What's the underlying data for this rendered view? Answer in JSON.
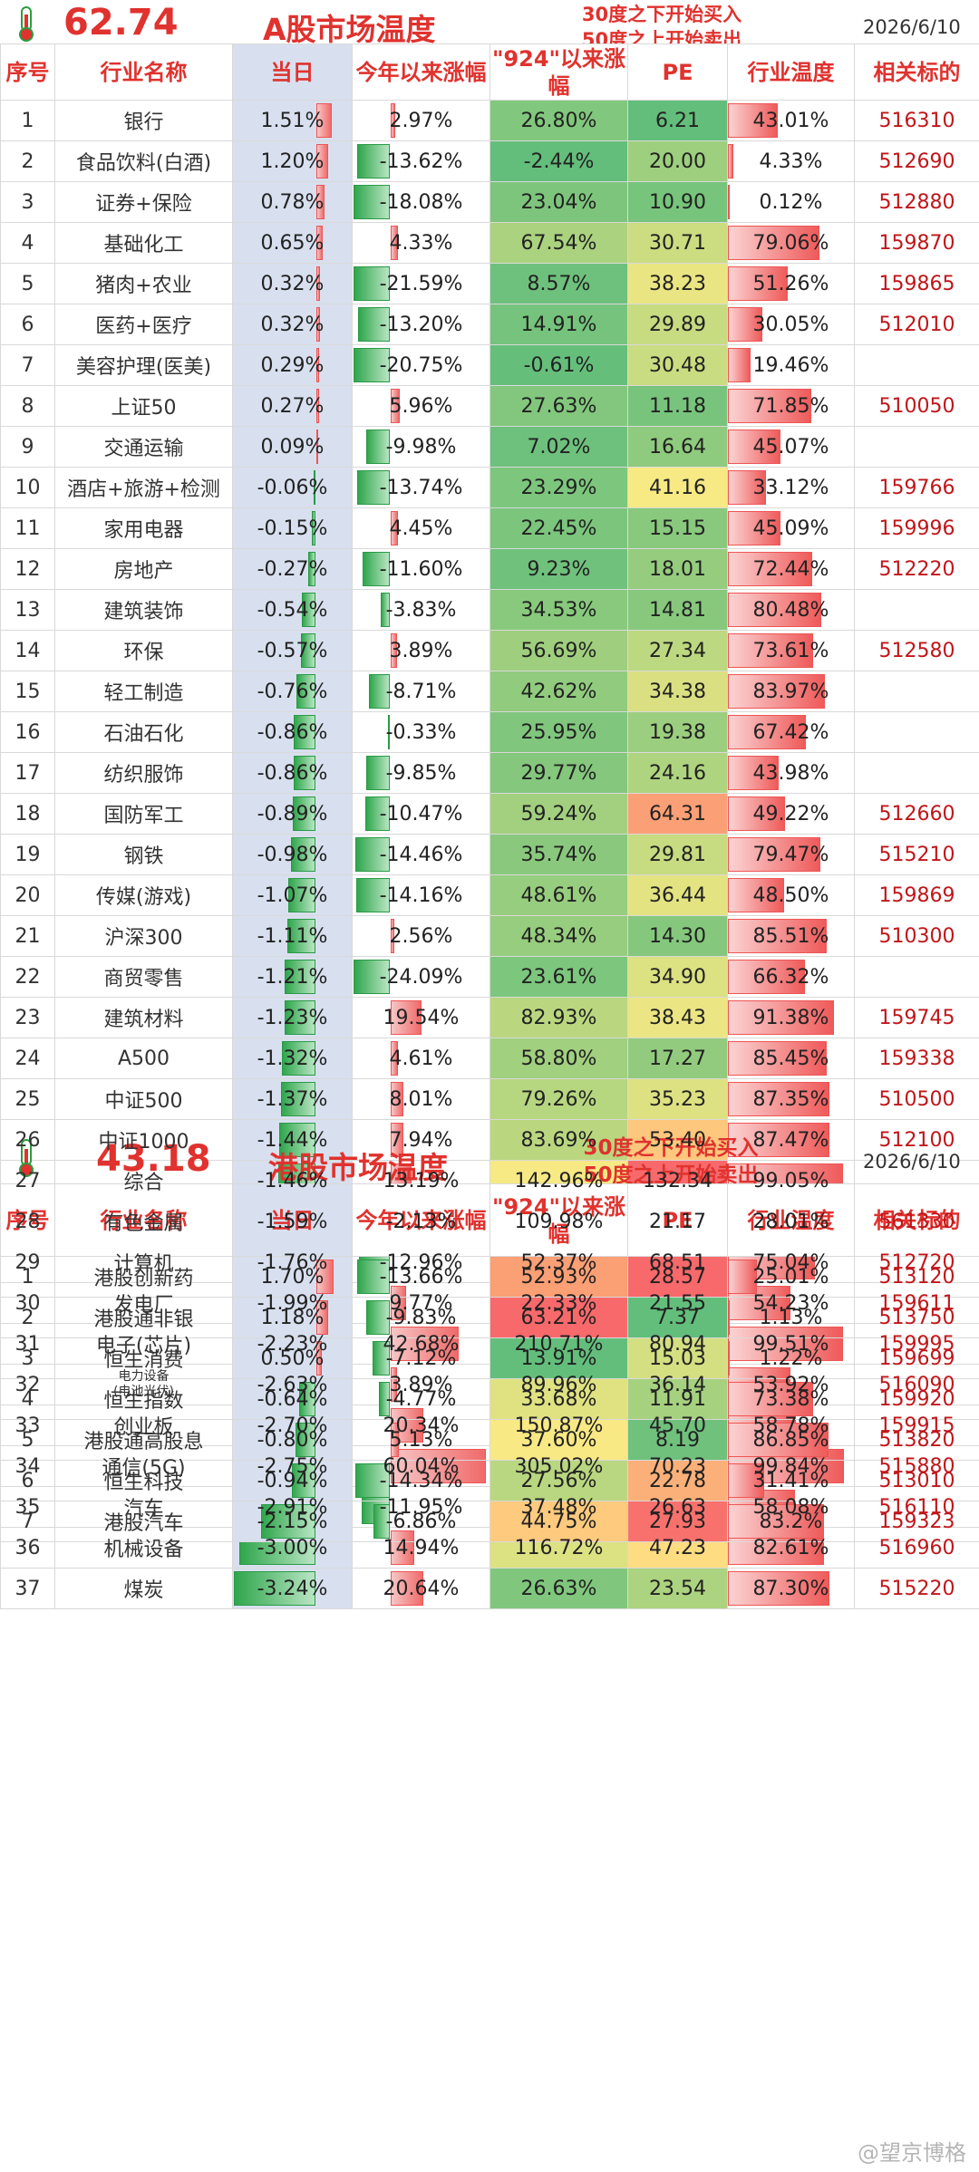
{
  "a_share": {
    "temperature": "62.74",
    "title": "A股市场温度",
    "note_line1": "30度之下开始买入",
    "note_line2": "50度之上开始卖出",
    "date": "2026/6/10",
    "headers": [
      "序号",
      "行业名称",
      "当日",
      "今年以来涨幅",
      "\"924\"以来涨幅",
      "PE",
      "行业温度",
      "相关标的"
    ],
    "rows": [
      {
        "seq": "1",
        "name": "银行",
        "today": "1.51%",
        "ytd": "2.97%",
        "s924": "26.80%",
        "pe": "6.21",
        "temp": "43.01%",
        "code": "516310"
      },
      {
        "seq": "2",
        "name": "食品饮料(白酒)",
        "today": "1.20%",
        "ytd": "-13.62%",
        "s924": "-2.44%",
        "pe": "20.00",
        "temp": "4.33%",
        "code": "512690"
      },
      {
        "seq": "3",
        "name": "证券+保险",
        "today": "0.78%",
        "ytd": "-18.08%",
        "s924": "23.04%",
        "pe": "10.90",
        "temp": "0.12%",
        "code": "512880"
      },
      {
        "seq": "4",
        "name": "基础化工",
        "today": "0.65%",
        "ytd": "4.33%",
        "s924": "67.54%",
        "pe": "30.71",
        "temp": "79.06%",
        "code": "159870"
      },
      {
        "seq": "5",
        "name": "猪肉+农业",
        "today": "0.32%",
        "ytd": "-21.59%",
        "s924": "8.57%",
        "pe": "38.23",
        "temp": "51.26%",
        "code": "159865"
      },
      {
        "seq": "6",
        "name": "医药+医疗",
        "today": "0.32%",
        "ytd": "-13.20%",
        "s924": "14.91%",
        "pe": "29.89",
        "temp": "30.05%",
        "code": "512010"
      },
      {
        "seq": "7",
        "name": "美容护理(医美)",
        "today": "0.29%",
        "ytd": "-20.75%",
        "s924": "-0.61%",
        "pe": "30.48",
        "temp": "19.46%",
        "code": ""
      },
      {
        "seq": "8",
        "name": "上证50",
        "today": "0.27%",
        "ytd": "5.96%",
        "s924": "27.63%",
        "pe": "11.18",
        "temp": "71.85%",
        "code": "510050"
      },
      {
        "seq": "9",
        "name": "交通运输",
        "today": "0.09%",
        "ytd": "-9.98%",
        "s924": "7.02%",
        "pe": "16.64",
        "temp": "45.07%",
        "code": ""
      },
      {
        "seq": "10",
        "name": "酒店+旅游+检测",
        "today": "-0.06%",
        "ytd": "-13.74%",
        "s924": "23.29%",
        "pe": "41.16",
        "temp": "33.12%",
        "code": "159766"
      },
      {
        "seq": "11",
        "name": "家用电器",
        "today": "-0.15%",
        "ytd": "4.45%",
        "s924": "22.45%",
        "pe": "15.15",
        "temp": "45.09%",
        "code": "159996"
      },
      {
        "seq": "12",
        "name": "房地产",
        "today": "-0.27%",
        "ytd": "-11.60%",
        "s924": "9.23%",
        "pe": "18.01",
        "temp": "72.44%",
        "code": "512220"
      },
      {
        "seq": "13",
        "name": "建筑装饰",
        "today": "-0.54%",
        "ytd": "-3.83%",
        "s924": "34.53%",
        "pe": "14.81",
        "temp": "80.48%",
        "code": ""
      },
      {
        "seq": "14",
        "name": "环保",
        "today": "-0.57%",
        "ytd": "3.89%",
        "s924": "56.69%",
        "pe": "27.34",
        "temp": "73.61%",
        "code": "512580"
      },
      {
        "seq": "15",
        "name": "轻工制造",
        "today": "-0.76%",
        "ytd": "-8.71%",
        "s924": "42.62%",
        "pe": "34.38",
        "temp": "83.97%",
        "code": ""
      },
      {
        "seq": "16",
        "name": "石油石化",
        "today": "-0.86%",
        "ytd": "-0.33%",
        "s924": "25.95%",
        "pe": "19.38",
        "temp": "67.42%",
        "code": ""
      },
      {
        "seq": "17",
        "name": "纺织服饰",
        "today": "-0.86%",
        "ytd": "-9.85%",
        "s924": "29.77%",
        "pe": "24.16",
        "temp": "43.98%",
        "code": ""
      },
      {
        "seq": "18",
        "name": "国防军工",
        "today": "-0.89%",
        "ytd": "-10.47%",
        "s924": "59.24%",
        "pe": "64.31",
        "temp": "49.22%",
        "code": "512660"
      },
      {
        "seq": "19",
        "name": "钢铁",
        "today": "-0.98%",
        "ytd": "-14.46%",
        "s924": "35.74%",
        "pe": "29.81",
        "temp": "79.47%",
        "code": "515210"
      },
      {
        "seq": "20",
        "name": "传媒(游戏)",
        "today": "-1.07%",
        "ytd": "-14.16%",
        "s924": "48.61%",
        "pe": "36.44",
        "temp": "48.50%",
        "code": "159869"
      },
      {
        "seq": "21",
        "name": "沪深300",
        "today": "-1.11%",
        "ytd": "2.56%",
        "s924": "48.34%",
        "pe": "14.30",
        "temp": "85.51%",
        "code": "510300"
      },
      {
        "seq": "22",
        "name": "商贸零售",
        "today": "-1.21%",
        "ytd": "-24.09%",
        "s924": "23.61%",
        "pe": "34.90",
        "temp": "66.32%",
        "code": ""
      },
      {
        "seq": "23",
        "name": "建筑材料",
        "today": "-1.23%",
        "ytd": "19.54%",
        "s924": "82.93%",
        "pe": "38.43",
        "temp": "91.38%",
        "code": "159745"
      },
      {
        "seq": "24",
        "name": "A500",
        "today": "-1.32%",
        "ytd": "4.61%",
        "s924": "58.80%",
        "pe": "17.27",
        "temp": "85.45%",
        "code": "159338"
      },
      {
        "seq": "25",
        "name": "中证500",
        "today": "-1.37%",
        "ytd": "8.01%",
        "s924": "79.26%",
        "pe": "35.23",
        "temp": "87.35%",
        "code": "510500"
      },
      {
        "seq": "26",
        "name": "中证1000",
        "today": "-1.44%",
        "ytd": "7.94%",
        "s924": "83.69%",
        "pe": "53.40",
        "temp": "87.47%",
        "code": "512100"
      },
      {
        "seq": "27",
        "name": "综合",
        "today": "-1.46%",
        "ytd": "13.19%",
        "s924": "142.96%",
        "pe": "132.34",
        "temp": "99.05%",
        "code": ""
      },
      {
        "seq": "28",
        "name": "有色金属",
        "today": "-1.59%",
        "ytd": "-2.13%",
        "s924": "109.98%",
        "pe": "21.17",
        "temp": "28.01%",
        "code": "561330"
      },
      {
        "seq": "29",
        "name": "计算机",
        "today": "-1.76%",
        "ytd": "-12.96%",
        "s924": "52.37%",
        "pe": "68.51",
        "temp": "75.04%",
        "code": "512720"
      },
      {
        "seq": "30",
        "name": "发电厂",
        "today": "-1.99%",
        "ytd": "9.77%",
        "s924": "22.33%",
        "pe": "21.55",
        "temp": "54.23%",
        "code": "159611"
      },
      {
        "seq": "31",
        "name": "电子(芯片)",
        "today": "-2.23%",
        "ytd": "42.68%",
        "s924": "210.71%",
        "pe": "80.94",
        "temp": "99.51%",
        "code": "159995"
      },
      {
        "seq": "32",
        "name": "电力设备\n(电池光伏)",
        "today": "-2.63%",
        "ytd": "3.89%",
        "s924": "89.96%",
        "pe": "36.14",
        "temp": "53.92%",
        "code": "516090"
      },
      {
        "seq": "33",
        "name": "创业板",
        "today": "-2.70%",
        "ytd": "20.34%",
        "s924": "150.87%",
        "pe": "45.70",
        "temp": "58.78%",
        "code": "159915"
      },
      {
        "seq": "34",
        "name": "通信(5G)",
        "today": "-2.75%",
        "ytd": "60.04%",
        "s924": "305.02%",
        "pe": "70.23",
        "temp": "99.84%",
        "code": "515880"
      },
      {
        "seq": "35",
        "name": "汽车",
        "today": "-2.91%",
        "ytd": "-11.95%",
        "s924": "37.48%",
        "pe": "26.63",
        "temp": "58.08%",
        "code": "516110"
      },
      {
        "seq": "36",
        "name": "机械设备",
        "today": "-3.00%",
        "ytd": "14.94%",
        "s924": "116.72%",
        "pe": "47.23",
        "temp": "82.61%",
        "code": "516960"
      },
      {
        "seq": "37",
        "name": "煤炭",
        "today": "-3.24%",
        "ytd": "20.64%",
        "s924": "26.63%",
        "pe": "23.54",
        "temp": "87.30%",
        "code": "515220"
      }
    ]
  },
  "hk_share": {
    "temperature": "43.18",
    "title": "港股市场温度",
    "note_line1": "30度之下开始买入",
    "note_line2": "50度之上开始卖出",
    "date": "2026/6/10",
    "headers": [
      "序号",
      "行业名称",
      "当日",
      "今年以来涨幅",
      "\"924\"以来涨幅",
      "PE",
      "行业温度",
      "相关标的"
    ],
    "rows": [
      {
        "seq": "1",
        "name": "港股创新药",
        "today": "1.70%",
        "ytd": "-13.66%",
        "s924": "52.93%",
        "pe": "28.57",
        "temp": "25.01%",
        "code": "513120"
      },
      {
        "seq": "2",
        "name": "港股通非银",
        "today": "1.18%",
        "ytd": "-9.83%",
        "s924": "63.21%",
        "pe": "7.37",
        "temp": "1.13%",
        "code": "513750"
      },
      {
        "seq": "3",
        "name": "恒生消费",
        "today": "0.50%",
        "ytd": "-7.12%",
        "s924": "13.91%",
        "pe": "15.03",
        "temp": "1.22%",
        "code": "159699"
      },
      {
        "seq": "4",
        "name": "恒生指数",
        "today": "-0.64%",
        "ytd": "-4.77%",
        "s924": "33.68%",
        "pe": "11.91",
        "temp": "73.38%",
        "code": "159920"
      },
      {
        "seq": "5",
        "name": "港股通高股息",
        "today": "-0.80%",
        "ytd": "5.13%",
        "s924": "37.60%",
        "pe": "8.19",
        "temp": "86.85%",
        "code": "513820"
      },
      {
        "seq": "6",
        "name": "恒生科技",
        "today": "-0.94%",
        "ytd": "-14.34%",
        "s924": "27.56%",
        "pe": "22.78",
        "temp": "31.41%",
        "code": "513010"
      },
      {
        "seq": "7",
        "name": "港股汽车",
        "today": "-2.15%",
        "ytd": "-6.86%",
        "s924": "44.75%",
        "pe": "27.93",
        "temp": "83.2%",
        "code": "159323"
      }
    ]
  },
  "watermark": "@望京博格",
  "colors": {
    "accent_red": "#e0322e",
    "code_red": "#c0161a",
    "today_bg": "#d8e0ef"
  },
  "icons": {
    "thermometer": "thermometer-icon"
  }
}
